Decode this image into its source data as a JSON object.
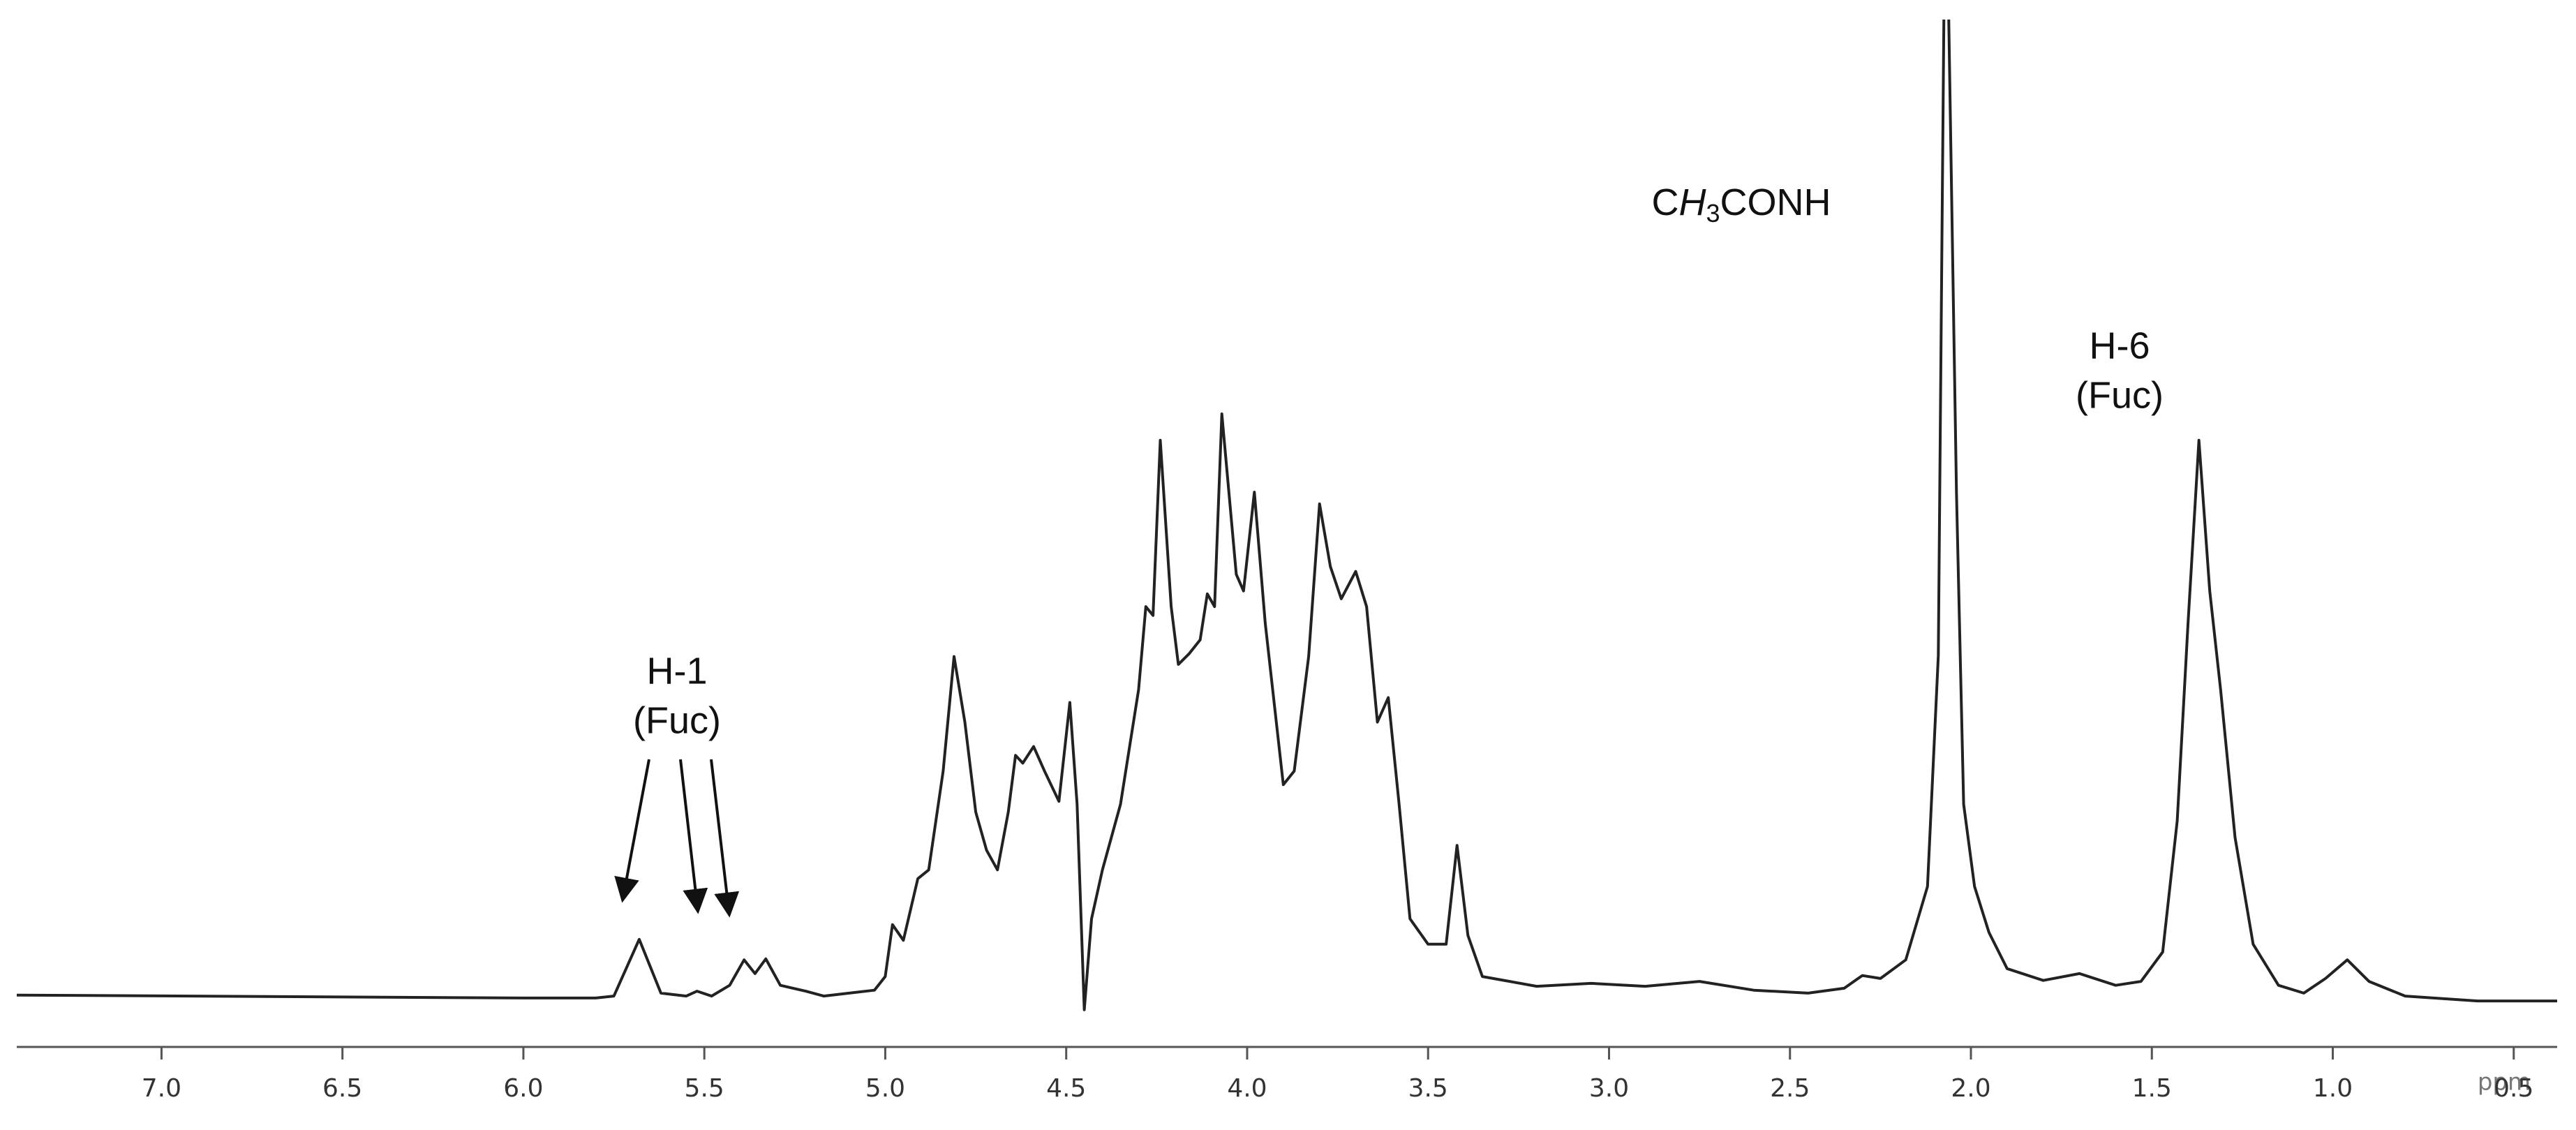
{
  "chart_data": {
    "type": "line",
    "x_unit": "ppm",
    "xlim": [
      7.4,
      0.38
    ],
    "ylim": [
      -5,
      100
    ],
    "xticks": [
      {
        "value": 7.0,
        "label": "7.0"
      },
      6.5,
      {
        "value": 6.0,
        "label": "6.0"
      },
      5.5,
      {
        "value": 5.0,
        "label": "5.0"
      },
      4.5,
      {
        "value": 4.0,
        "label": "4.0"
      },
      3.5,
      {
        "value": 3.0,
        "label": "3.0"
      },
      2.5,
      {
        "value": 2.0,
        "label": "2.0"
      },
      1.5,
      {
        "value": 1.0,
        "label": "1.0"
      },
      0.5
    ],
    "x": [
      7.4,
      6.0,
      5.8,
      5.75,
      5.68,
      5.62,
      5.55,
      5.52,
      5.48,
      5.43,
      5.39,
      5.36,
      5.33,
      5.29,
      5.22,
      5.17,
      5.1,
      5.03,
      5.0,
      4.98,
      4.95,
      4.91,
      4.88,
      4.84,
      4.81,
      4.78,
      4.75,
      4.72,
      4.69,
      4.66,
      4.64,
      4.62,
      4.59,
      4.56,
      4.52,
      4.49,
      4.47,
      4.45,
      4.43,
      4.4,
      4.35,
      4.3,
      4.28,
      4.26,
      4.24,
      4.21,
      4.19,
      4.16,
      4.13,
      4.11,
      4.09,
      4.07,
      4.03,
      4.01,
      3.98,
      3.95,
      3.9,
      3.87,
      3.83,
      3.8,
      3.77,
      3.74,
      3.7,
      3.67,
      3.64,
      3.61,
      3.58,
      3.55,
      3.5,
      3.45,
      3.42,
      3.39,
      3.35,
      3.2,
      3.05,
      2.9,
      2.75,
      2.6,
      2.45,
      2.35,
      2.3,
      2.25,
      2.18,
      2.12,
      2.09,
      2.07,
      2.04,
      2.02,
      1.99,
      1.95,
      1.9,
      1.8,
      1.7,
      1.6,
      1.53,
      1.47,
      1.43,
      1.4,
      1.37,
      1.34,
      1.31,
      1.27,
      1.22,
      1.15,
      1.08,
      1.02,
      0.96,
      0.9,
      0.8,
      0.6,
      0.38
    ],
    "series": [
      {
        "color": "#222222",
        "values": [
          0.3,
          0,
          0,
          0.2,
          6.0,
          0.5,
          0.2,
          0.7,
          0.2,
          1.3,
          3.9,
          2.5,
          4.0,
          1.3,
          0.7,
          0.2,
          0.5,
          0.8,
          2.2,
          7.5,
          5.9,
          12.2,
          13.1,
          23.2,
          34.9,
          28.2,
          19.0,
          15.1,
          13.1,
          19.0,
          24.8,
          24.0,
          25.7,
          23.2,
          20.1,
          30.2,
          19.8,
          -1.2,
          8.1,
          13.1,
          19.8,
          31.5,
          40.0,
          39.1,
          57.0,
          40.0,
          34.1,
          35.2,
          36.6,
          41.3,
          40.0,
          59.7,
          43.3,
          41.6,
          51.7,
          38.3,
          21.8,
          23.2,
          34.9,
          50.5,
          44.1,
          40.8,
          43.6,
          40.0,
          28.2,
          30.7,
          19.8,
          8.1,
          5.5,
          5.5,
          15.6,
          6.4,
          2.2,
          1.2,
          1.5,
          1.2,
          1.7,
          0.8,
          0.5,
          1.0,
          2.3,
          2.0,
          3.9,
          11.4,
          35.0,
          120,
          51.7,
          19.8,
          11.4,
          6.7,
          3.0,
          1.8,
          2.5,
          1.3,
          1.7,
          4.7,
          18.1,
          38.3,
          57.0,
          41.6,
          31.5,
          16.4,
          5.5,
          1.3,
          0.5,
          2.0,
          3.9,
          1.7,
          0.2,
          -0.3,
          -0.3
        ]
      }
    ],
    "annotations": [
      {
        "lines": [
          "H-1",
          "(Fuc)"
        ]
      },
      {
        "parts": [
          "C",
          "H",
          "3",
          "CONH"
        ]
      },
      {
        "lines": [
          "H-6",
          "(Fuc)"
        ]
      }
    ]
  }
}
